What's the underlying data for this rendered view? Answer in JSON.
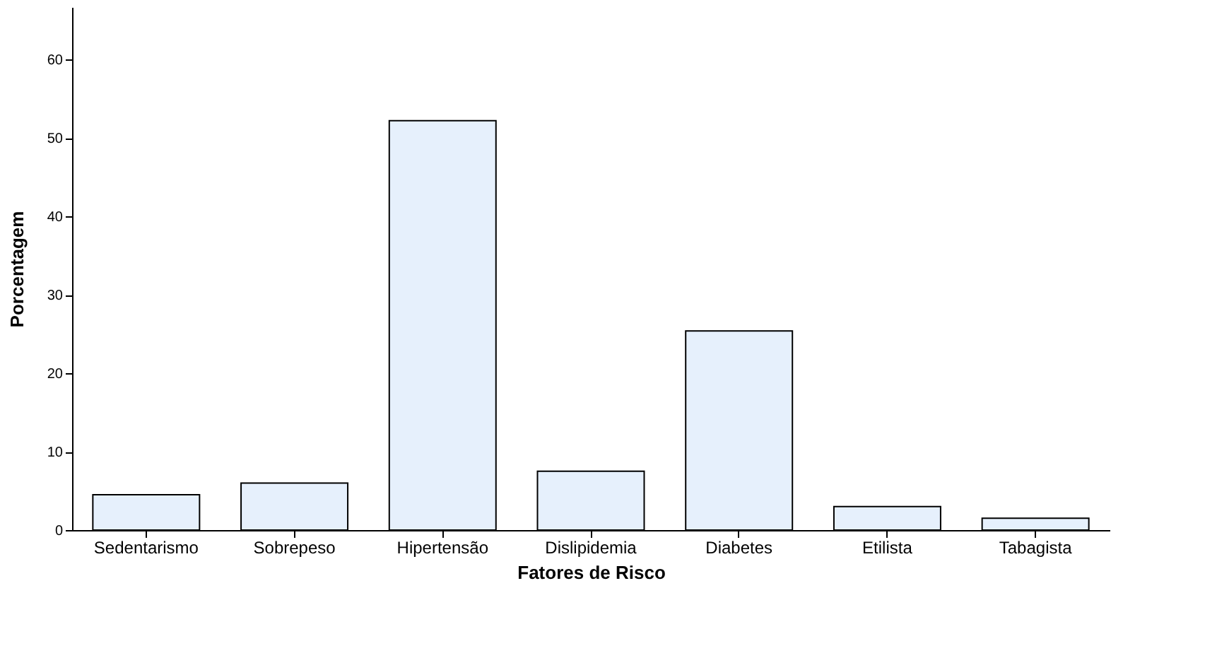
{
  "chart_data": {
    "type": "bar",
    "xlabel": "Fatores de Risco",
    "ylabel": "Porcentagem",
    "categories": [
      "Sedentarismo",
      "Sobrepeso",
      "Hipertensão",
      "Dislipidemia",
      "Diabetes",
      "Etilista",
      "Tabagista"
    ],
    "values": [
      4.5,
      6,
      52.2,
      7.5,
      25.4,
      3,
      1.5
    ],
    "color": "#e6f0fc",
    "ylim": [
      0,
      66.7
    ],
    "yticks": [
      0,
      10,
      20,
      30,
      40,
      50,
      60
    ],
    "grid": false
  }
}
